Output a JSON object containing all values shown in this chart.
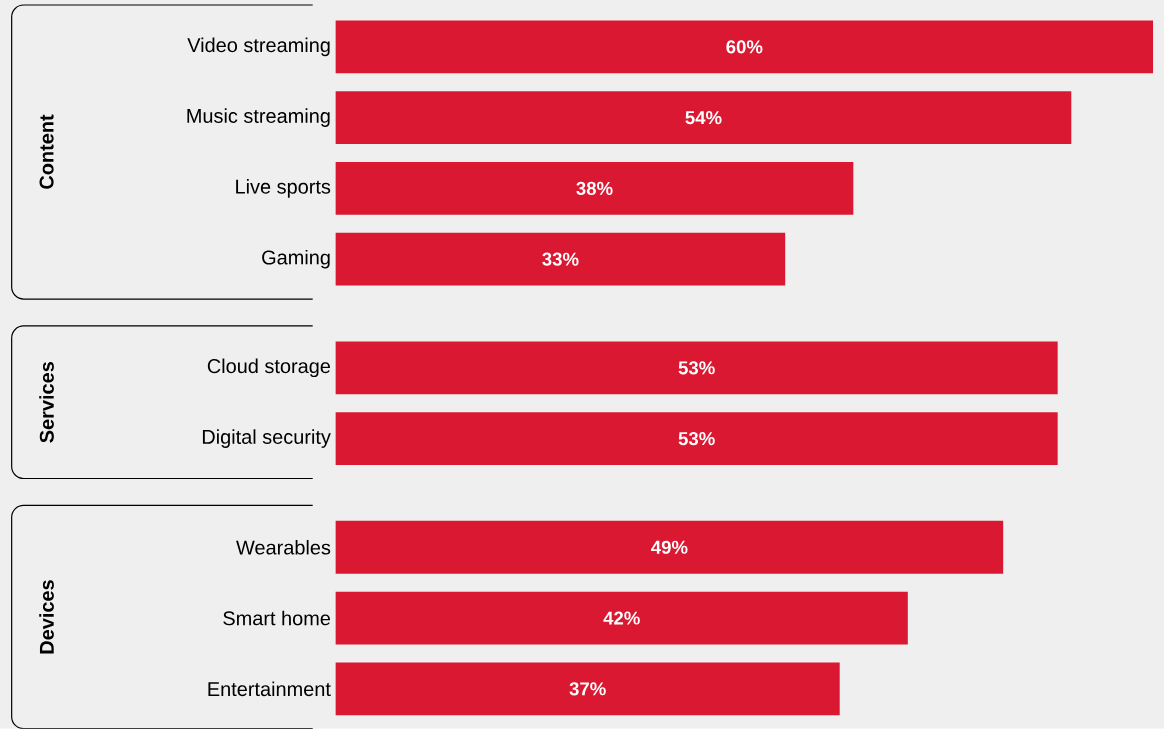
{
  "chart_data": {
    "type": "bar",
    "orientation": "horizontal",
    "categories": [
      "Video streaming",
      "Music streaming",
      "Live sports",
      "Gaming",
      "Cloud storage",
      "Digital security",
      "Wearables",
      "Smart home",
      "Entertainment"
    ],
    "values": [
      60,
      54,
      38,
      33,
      53,
      53,
      49,
      42,
      37
    ],
    "value_labels": [
      "60%",
      "54%",
      "38%",
      "33%",
      "53%",
      "53%",
      "49%",
      "42%",
      "37%"
    ],
    "color": "#da1832",
    "annotations": [
      "Content",
      "Services",
      "Devices"
    ]
  }
}
